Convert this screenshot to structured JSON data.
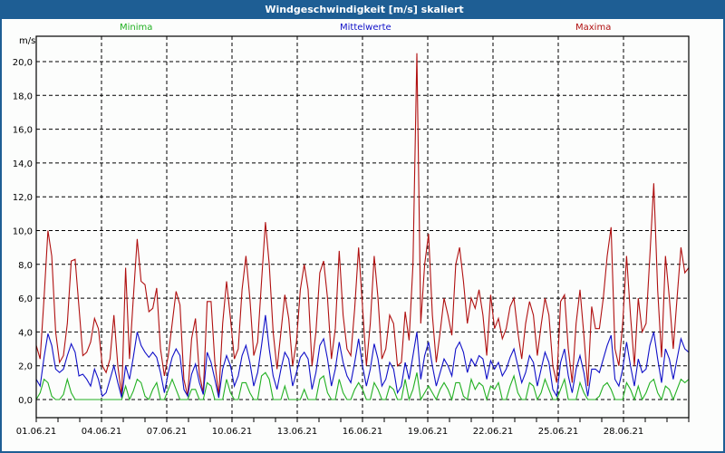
{
  "window": {
    "title": "Windgeschwindigkeit [m/s] skaliert"
  },
  "legend": [
    {
      "label": "Minima",
      "color": "#22b022"
    },
    {
      "label": "Mittelwerte",
      "color": "#1010c8"
    },
    {
      "label": "Maxima",
      "color": "#b01010"
    }
  ],
  "axis": {
    "y_unit": "m/s",
    "y_ticks": [
      "0,0",
      "2,0",
      "4,0",
      "6,0",
      "8,0",
      "10,0",
      "12,0",
      "14,0",
      "16,0",
      "18,0",
      "20,0"
    ],
    "x_ticks": [
      "01.06.21",
      "04.06.21",
      "07.06.21",
      "10.06.21",
      "13.06.21",
      "16.06.21",
      "19.06.21",
      "22.06.21",
      "25.06.21",
      "28.06.21"
    ]
  },
  "chart_data": {
    "type": "line",
    "title": "Windgeschwindigkeit [m/s] skaliert",
    "xlabel": "",
    "ylabel": "m/s",
    "ylim": [
      0,
      21
    ],
    "grid": true,
    "legend_position": "top",
    "x_start": "01.06.21",
    "x_end": "30.06.21",
    "x_step": "6h",
    "x_tick_labels": [
      "01.06.21",
      "04.06.21",
      "07.06.21",
      "10.06.21",
      "13.06.21",
      "16.06.21",
      "19.06.21",
      "22.06.21",
      "25.06.21",
      "28.06.21"
    ],
    "y_tick_labels": [
      "0,0",
      "2,0",
      "4,0",
      "6,0",
      "8,0",
      "10,0",
      "12,0",
      "14,0",
      "16,0",
      "18,0",
      "20,0"
    ],
    "series": [
      {
        "name": "Maxima",
        "color": "#b01010",
        "values": [
          3.2,
          2.4,
          6.0,
          10.0,
          8.5,
          4.0,
          2.2,
          2.6,
          4.5,
          8.2,
          8.3,
          5.5,
          2.6,
          2.8,
          3.4,
          4.8,
          4.2,
          2.0,
          1.6,
          2.4,
          5.0,
          2.0,
          0.2,
          7.8,
          2.4,
          6.0,
          9.5,
          7.0,
          6.8,
          5.2,
          5.4,
          6.6,
          3.0,
          1.4,
          2.6,
          4.5,
          6.4,
          5.6,
          1.2,
          0.2,
          3.6,
          4.8,
          1.5,
          0.4,
          5.8,
          5.8,
          2.2,
          0.2,
          4.5,
          7.0,
          4.8,
          2.4,
          3.0,
          6.5,
          8.5,
          6.0,
          2.6,
          3.4,
          7.0,
          10.5,
          8.0,
          4.0,
          1.8,
          4.0,
          6.2,
          4.8,
          2.0,
          3.4,
          6.5,
          8.0,
          6.5,
          2.0,
          4.0,
          7.5,
          8.2,
          6.0,
          2.4,
          4.2,
          8.8,
          5.0,
          3.0,
          2.6,
          5.4,
          9.0,
          5.5,
          2.0,
          4.5,
          8.5,
          6.0,
          2.4,
          3.0,
          5.0,
          4.5,
          2.0,
          2.2,
          5.2,
          3.5,
          8.0,
          20.5,
          4.5,
          8.0,
          9.8,
          5.0,
          2.2,
          4.0,
          6.0,
          5.0,
          3.8,
          8.0,
          9.0,
          7.0,
          4.5,
          6.0,
          5.4,
          6.5,
          5.0,
          2.6,
          6.2,
          4.2,
          4.8,
          3.6,
          4.2,
          5.5,
          6.0,
          4.0,
          2.4,
          4.5,
          5.8,
          5.0,
          2.6,
          4.4,
          6.0,
          5.0,
          2.0,
          1.0,
          5.8,
          6.2,
          3.0,
          1.0,
          4.5,
          6.5,
          3.8,
          0.8,
          5.5,
          4.2,
          4.2,
          6.0,
          8.5,
          10.2,
          3.0,
          2.0,
          4.5,
          8.5,
          5.0,
          2.0,
          6.0,
          4.0,
          4.5,
          8.5,
          12.8,
          6.5,
          2.5,
          8.5,
          6.0,
          3.0,
          6.0,
          9.0,
          7.5,
          7.8
        ]
      },
      {
        "name": "Mittelwerte",
        "color": "#1010c8",
        "values": [
          1.2,
          0.8,
          2.5,
          3.9,
          3.2,
          1.8,
          1.6,
          1.8,
          2.6,
          3.3,
          2.8,
          1.4,
          1.5,
          1.2,
          0.8,
          1.8,
          1.2,
          0.2,
          0.4,
          1.2,
          2.0,
          1.0,
          0.1,
          2.0,
          1.2,
          2.5,
          4.0,
          3.2,
          2.8,
          2.5,
          2.8,
          2.5,
          1.6,
          0.4,
          1.6,
          2.5,
          3.0,
          2.6,
          0.6,
          0.2,
          1.5,
          2.1,
          1.0,
          0.3,
          2.8,
          2.2,
          1.2,
          0.1,
          1.8,
          2.6,
          2.0,
          0.8,
          1.4,
          2.6,
          3.2,
          2.2,
          0.8,
          1.6,
          3.2,
          5.0,
          3.0,
          1.4,
          0.6,
          1.8,
          2.8,
          2.4,
          0.8,
          1.6,
          2.5,
          2.8,
          2.4,
          0.6,
          1.6,
          3.2,
          3.6,
          2.4,
          0.8,
          1.8,
          3.4,
          2.2,
          1.4,
          1.0,
          2.2,
          3.6,
          2.0,
          0.8,
          1.8,
          3.3,
          2.4,
          0.8,
          1.2,
          2.2,
          1.8,
          0.4,
          0.8,
          2.2,
          1.2,
          2.6,
          4.0,
          1.2,
          2.6,
          3.4,
          2.0,
          0.8,
          1.6,
          2.4,
          2.0,
          1.4,
          3.0,
          3.4,
          2.8,
          1.6,
          2.4,
          2.0,
          2.6,
          2.4,
          1.2,
          2.3,
          1.8,
          2.2,
          1.4,
          1.8,
          2.5,
          3.0,
          2.0,
          1.0,
          1.6,
          2.6,
          2.2,
          0.8,
          1.8,
          2.8,
          2.2,
          0.6,
          0.2,
          2.2,
          3.0,
          1.4,
          0.4,
          1.8,
          2.6,
          1.6,
          0.2,
          1.8,
          1.8,
          1.6,
          2.4,
          3.2,
          3.8,
          1.2,
          0.8,
          1.8,
          3.4,
          2.0,
          0.8,
          2.4,
          1.6,
          1.8,
          3.2,
          4.0,
          2.4,
          1.0,
          3.0,
          2.4,
          1.2,
          2.4,
          3.6,
          3.0,
          2.8
        ]
      },
      {
        "name": "Minima",
        "color": "#22b022",
        "values": [
          0.0,
          0.4,
          1.2,
          1.0,
          0.2,
          0.0,
          0.0,
          0.3,
          1.2,
          0.4,
          0.0,
          0.0,
          0.0,
          0.0,
          0.0,
          0.0,
          0.0,
          0.0,
          0.0,
          0.0,
          0.0,
          0.0,
          0.0,
          0.8,
          0.0,
          0.5,
          1.2,
          1.0,
          0.2,
          0.0,
          0.6,
          1.0,
          0.0,
          0.0,
          0.6,
          1.2,
          0.6,
          0.0,
          0.0,
          0.0,
          0.6,
          0.6,
          0.0,
          0.0,
          1.0,
          0.8,
          0.0,
          0.0,
          0.0,
          1.2,
          0.4,
          0.0,
          0.0,
          1.0,
          1.0,
          0.4,
          0.0,
          0.0,
          1.4,
          1.6,
          1.2,
          0.0,
          0.0,
          0.0,
          0.8,
          0.0,
          0.0,
          0.0,
          0.0,
          0.6,
          0.0,
          0.0,
          0.0,
          1.2,
          1.4,
          0.4,
          0.0,
          0.0,
          1.2,
          0.4,
          0.0,
          0.0,
          0.6,
          1.0,
          0.6,
          0.0,
          0.0,
          1.0,
          0.6,
          0.0,
          0.0,
          0.8,
          0.6,
          0.0,
          0.0,
          1.2,
          0.0,
          0.6,
          1.6,
          0.0,
          0.4,
          0.8,
          0.4,
          0.0,
          0.6,
          1.0,
          0.6,
          0.0,
          1.0,
          1.0,
          0.2,
          0.0,
          1.2,
          0.6,
          1.0,
          0.8,
          0.0,
          0.8,
          0.6,
          1.0,
          0.0,
          0.0,
          0.8,
          1.4,
          0.4,
          0.0,
          0.0,
          1.0,
          0.8,
          0.0,
          0.4,
          1.2,
          0.6,
          0.0,
          0.0,
          0.6,
          1.2,
          0.0,
          0.0,
          0.0,
          1.0,
          0.4,
          0.0,
          0.0,
          0.0,
          0.2,
          0.8,
          1.0,
          0.6,
          0.0,
          0.0,
          0.0,
          1.0,
          0.6,
          0.0,
          0.8,
          0.0,
          0.4,
          1.0,
          1.2,
          0.4,
          0.0,
          0.8,
          0.6,
          0.0,
          0.6,
          1.2,
          1.0,
          1.2
        ]
      }
    ]
  }
}
